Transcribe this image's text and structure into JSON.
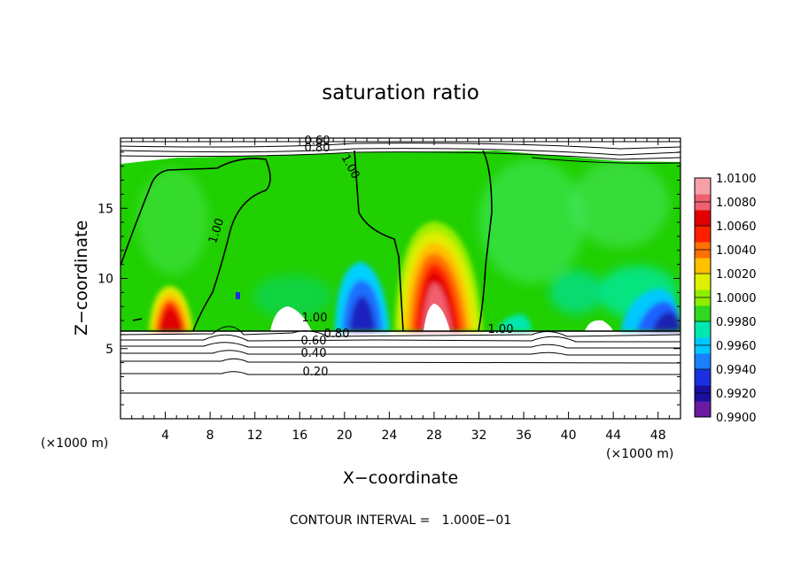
{
  "chart_data": {
    "type": "heatmap",
    "title": "saturation ratio",
    "xlabel": "X−coordinate",
    "ylabel": "Z−coordinate",
    "x_unit": "(×1000 m)",
    "x_unit_right": "(×1000 m)",
    "xlim": [
      0,
      50
    ],
    "ylim": [
      0,
      20
    ],
    "x_ticks": [
      4,
      8,
      12,
      16,
      20,
      24,
      28,
      32,
      36,
      40,
      44,
      48
    ],
    "y_ticks": [
      5,
      10,
      15
    ],
    "footer": "CONTOUR INTERVAL =   1.000E−01",
    "colorbar": {
      "labels": [
        "1.0100",
        "1.0080",
        "1.0060",
        "1.0040",
        "1.0020",
        "1.0000",
        "0.9980",
        "0.9960",
        "0.9940",
        "0.9920",
        "0.9900"
      ],
      "min": 0.99,
      "max": 1.01,
      "colors": [
        "#6a1aa0",
        "#1a10a0",
        "#1a30e0",
        "#1a80ff",
        "#00c8ff",
        "#00e8b0",
        "#30d820",
        "#90ee00",
        "#e0ee00",
        "#ffc000",
        "#ff7000",
        "#ff2000",
        "#e00000",
        "#f06070",
        "#f8a0a8"
      ]
    },
    "contour_labels": [
      "0.60",
      "0.80",
      "1.00",
      "1.00",
      "1.00",
      "0.80",
      "0.60",
      "0.40",
      "0.20",
      "1.00"
    ],
    "contour_levels": [
      0.2,
      0.4,
      0.6,
      0.8,
      1.0
    ]
  }
}
